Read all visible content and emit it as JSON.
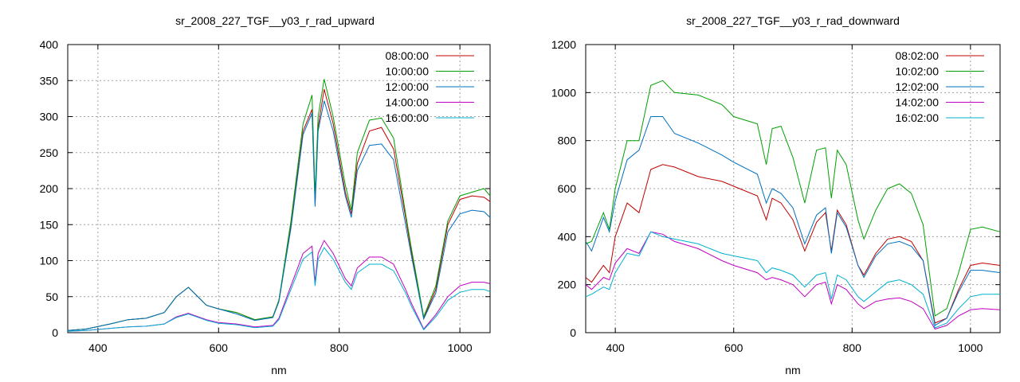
{
  "chart_data": [
    {
      "type": "line",
      "title": "sr_2008_227_TGF__y03_r_rad_upward",
      "xlabel": "nm",
      "ylabel": "",
      "xlim": [
        350,
        1050
      ],
      "ylim": [
        0,
        400
      ],
      "xticks": [
        400,
        600,
        800,
        1000
      ],
      "yticks": [
        0,
        50,
        100,
        150,
        200,
        250,
        300,
        350,
        400
      ],
      "grid": true,
      "legend_position": "top-right",
      "x": [
        350,
        380,
        420,
        450,
        480,
        510,
        530,
        550,
        580,
        600,
        630,
        660,
        690,
        700,
        720,
        740,
        755,
        760,
        765,
        775,
        790,
        810,
        820,
        830,
        850,
        870,
        890,
        910,
        920,
        940,
        960,
        980,
        1000,
        1020,
        1040,
        1050
      ],
      "series": [
        {
          "name": "08:00:00",
          "color": "#c00000",
          "values": [
            3,
            5,
            12,
            18,
            20,
            28,
            50,
            63,
            38,
            33,
            28,
            18,
            22,
            45,
            150,
            280,
            310,
            180,
            285,
            338,
            290,
            195,
            165,
            235,
            280,
            285,
            255,
            160,
            110,
            20,
            60,
            150,
            185,
            190,
            188,
            182
          ]
        },
        {
          "name": "10:00:00",
          "color": "#00a000",
          "values": [
            3,
            5,
            12,
            18,
            20,
            28,
            50,
            63,
            38,
            33,
            28,
            18,
            22,
            45,
            155,
            290,
            330,
            190,
            300,
            352,
            300,
            205,
            170,
            250,
            295,
            298,
            270,
            165,
            115,
            22,
            65,
            155,
            190,
            195,
            200,
            190
          ]
        },
        {
          "name": "12:00:00",
          "color": "#0070c0",
          "values": [
            3,
            5,
            12,
            18,
            20,
            28,
            50,
            63,
            38,
            33,
            26,
            17,
            21,
            43,
            145,
            275,
            305,
            175,
            280,
            322,
            280,
            190,
            160,
            225,
            260,
            262,
            240,
            150,
            105,
            19,
            55,
            140,
            165,
            170,
            168,
            160
          ]
        },
        {
          "name": "14:00:00",
          "color": "#c000c0",
          "values": [
            2,
            3,
            6,
            8,
            9,
            12,
            22,
            27,
            18,
            14,
            12,
            8,
            10,
            20,
            65,
            110,
            120,
            70,
            110,
            128,
            110,
            75,
            65,
            90,
            105,
            105,
            95,
            60,
            40,
            5,
            25,
            50,
            65,
            70,
            70,
            68
          ]
        },
        {
          "name": "16:00:00",
          "color": "#00b0d0",
          "values": [
            2,
            3,
            6,
            8,
            9,
            12,
            21,
            26,
            17,
            13,
            11,
            7,
            9,
            18,
            60,
            102,
            112,
            65,
            102,
            118,
            102,
            70,
            60,
            83,
            95,
            95,
            86,
            55,
            36,
            4,
            22,
            45,
            56,
            60,
            60,
            57
          ]
        }
      ]
    },
    {
      "type": "line",
      "title": "sr_2008_227_TGF__y03_r_rad_downward",
      "xlabel": "nm",
      "ylabel": "",
      "xlim": [
        350,
        1050
      ],
      "ylim": [
        0,
        1200
      ],
      "xticks": [
        400,
        600,
        800,
        1000
      ],
      "yticks": [
        0,
        200,
        400,
        600,
        800,
        1000,
        1200
      ],
      "grid": true,
      "legend_position": "top-right",
      "x": [
        350,
        360,
        380,
        390,
        400,
        420,
        440,
        460,
        480,
        500,
        540,
        580,
        600,
        640,
        655,
        665,
        680,
        700,
        720,
        740,
        755,
        765,
        775,
        790,
        810,
        820,
        840,
        860,
        880,
        900,
        920,
        940,
        960,
        980,
        1000,
        1020,
        1050
      ],
      "series": [
        {
          "name": "08:02:00",
          "color": "#c00000",
          "values": [
            230,
            210,
            280,
            250,
            400,
            540,
            500,
            680,
            700,
            690,
            650,
            630,
            610,
            570,
            470,
            560,
            540,
            470,
            340,
            460,
            500,
            340,
            510,
            450,
            280,
            240,
            330,
            390,
            400,
            380,
            300,
            40,
            60,
            180,
            280,
            290,
            280
          ]
        },
        {
          "name": "10:02:00",
          "color": "#00a000",
          "values": [
            370,
            380,
            500,
            430,
            600,
            800,
            800,
            1030,
            1050,
            1000,
            990,
            950,
            900,
            870,
            700,
            850,
            860,
            730,
            540,
            760,
            770,
            560,
            760,
            700,
            470,
            390,
            510,
            600,
            620,
            580,
            450,
            70,
            100,
            250,
            430,
            440,
            420
          ]
        },
        {
          "name": "12:02:00",
          "color": "#0070c0",
          "values": [
            380,
            340,
            480,
            420,
            550,
            720,
            760,
            900,
            900,
            830,
            790,
            740,
            710,
            660,
            540,
            600,
            580,
            520,
            370,
            490,
            520,
            330,
            500,
            440,
            280,
            230,
            320,
            370,
            380,
            360,
            300,
            30,
            60,
            170,
            260,
            260,
            250
          ]
        },
        {
          "name": "14:02:00",
          "color": "#c000c0",
          "values": [
            200,
            180,
            230,
            220,
            290,
            350,
            330,
            420,
            410,
            380,
            350,
            300,
            280,
            250,
            220,
            230,
            220,
            200,
            150,
            200,
            210,
            120,
            200,
            180,
            120,
            100,
            130,
            140,
            145,
            130,
            100,
            15,
            30,
            70,
            95,
            100,
            95
          ]
        },
        {
          "name": "16:02:00",
          "color": "#00b0d0",
          "values": [
            150,
            160,
            190,
            180,
            250,
            330,
            320,
            420,
            400,
            390,
            370,
            330,
            320,
            300,
            250,
            270,
            260,
            240,
            190,
            240,
            250,
            140,
            240,
            220,
            150,
            130,
            170,
            210,
            220,
            200,
            160,
            20,
            40,
            100,
            150,
            160,
            160
          ]
        }
      ]
    }
  ]
}
